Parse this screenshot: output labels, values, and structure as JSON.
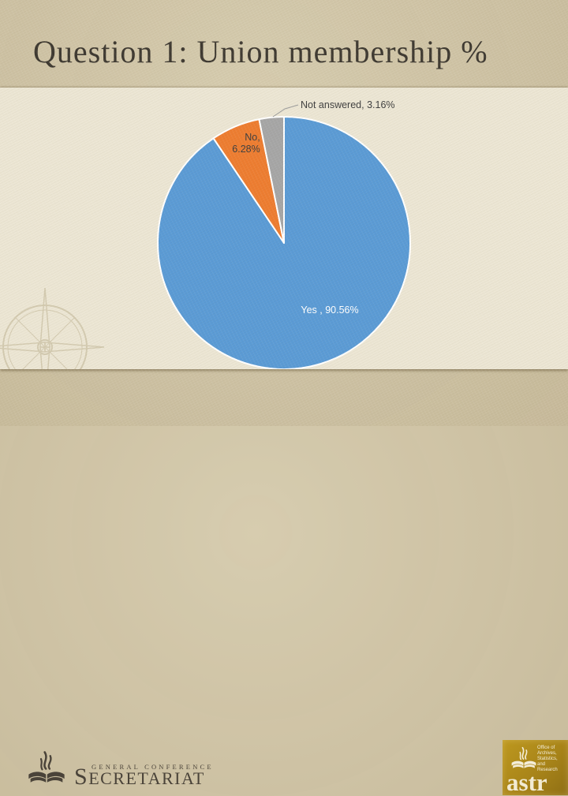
{
  "slide": {
    "title": "Question 1: Union membership %"
  },
  "chart_data": {
    "type": "pie",
    "title": "Question 1: Union membership %",
    "categories": [
      "Yes",
      "No",
      "Not answered"
    ],
    "values": [
      90.56,
      6.28,
      3.16
    ],
    "unit": "%",
    "colors": [
      "#5b9bd5",
      "#ed7d31",
      "#a6a6a6"
    ],
    "start_angle_deg": 0,
    "direction": "clockwise",
    "legend": "none",
    "labels": {
      "yes": "Yes , 90.56%",
      "no_line1": "No,",
      "no_line2": "6.28%",
      "not_answered": "Not answered, 3.16%"
    }
  },
  "footer": {
    "secretariat": {
      "line1": "GENERAL CONFERENCE",
      "line2": "SECRETARIAT"
    },
    "astr": {
      "org_lines": [
        "Office of",
        "Archives,",
        "Statistics,",
        "and Research"
      ],
      "acronym": "astr"
    }
  },
  "theme": {
    "background_tan": "#d2c6a6",
    "panel_cream": "#ece6d4",
    "title_color": "#3e3931",
    "astr_gold": "#a88419"
  }
}
